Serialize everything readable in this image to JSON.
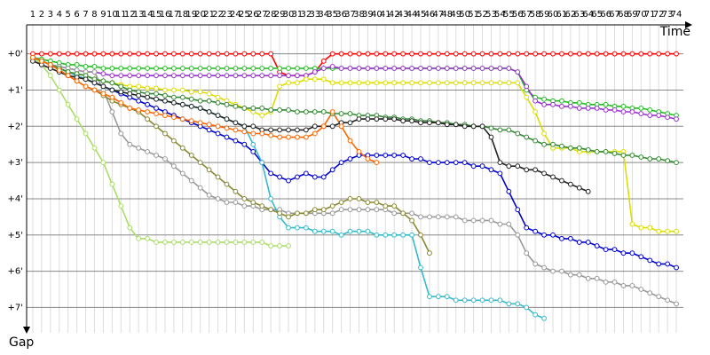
{
  "chart_data": {
    "type": "line",
    "x_label": "Time",
    "y_label": "Gap",
    "x": [
      1,
      2,
      3,
      4,
      5,
      6,
      7,
      8,
      9,
      10,
      11,
      12,
      13,
      14,
      15,
      16,
      17,
      18,
      19,
      20,
      21,
      22,
      23,
      24,
      25,
      26,
      27,
      28,
      29,
      30,
      31,
      32,
      33,
      34,
      35,
      36,
      37,
      38,
      39,
      40,
      41,
      42,
      43,
      44,
      45,
      46,
      47,
      48,
      49,
      50,
      51,
      52,
      53,
      54,
      55,
      56,
      57,
      58,
      59,
      60,
      61,
      62,
      63,
      64,
      65,
      66,
      67,
      68,
      69,
      70,
      71,
      72,
      73,
      74
    ],
    "xlim": [
      0.3,
      74.8
    ],
    "xticks": [
      1,
      2,
      3,
      4,
      5,
      6,
      7,
      8,
      9,
      10,
      11,
      12,
      13,
      14,
      15,
      16,
      17,
      18,
      19,
      20,
      21,
      22,
      23,
      24,
      25,
      26,
      27,
      28,
      29,
      30,
      31,
      32,
      33,
      34,
      35,
      36,
      37,
      38,
      39,
      40,
      41,
      42,
      43,
      44,
      45,
      46,
      47,
      48,
      49,
      50,
      51,
      52,
      53,
      54,
      55,
      56,
      57,
      58,
      59,
      60,
      61,
      62,
      63,
      64,
      65,
      66,
      67,
      68,
      69,
      70,
      71,
      72,
      73,
      74
    ],
    "ylim": [
      -0.8,
      7.7
    ],
    "y_inverted": true,
    "grid": true,
    "yticks": [
      {
        "value": 0,
        "label": "+0'"
      },
      {
        "value": 1,
        "label": "+1'"
      },
      {
        "value": 2,
        "label": "+2'"
      },
      {
        "value": 3,
        "label": "+3'"
      },
      {
        "value": 4,
        "label": "+4'"
      },
      {
        "value": 5,
        "label": "+5'"
      },
      {
        "value": 6,
        "label": "+6'"
      },
      {
        "value": 7,
        "label": "+7'"
      }
    ],
    "series": [
      {
        "color": "#ff0000",
        "values": [
          0,
          0,
          0,
          0,
          0,
          0,
          0,
          0,
          0,
          0,
          0,
          0,
          0,
          0,
          0,
          0,
          0,
          0,
          0,
          0,
          0,
          0,
          0,
          0,
          0,
          0,
          0,
          0,
          0.5,
          0.6,
          0.6,
          0.6,
          0.5,
          0.2,
          0,
          0,
          0,
          0,
          0,
          0,
          0,
          0,
          0,
          0,
          0,
          0,
          0,
          0,
          0,
          0,
          0,
          0,
          0,
          0,
          0,
          0,
          0,
          0,
          0,
          0,
          0,
          0,
          0,
          0,
          0,
          0,
          0,
          0,
          0,
          0,
          0,
          0,
          0,
          0
        ]
      },
      {
        "color": "#22bb22",
        "values": [
          0.1,
          0.15,
          0.2,
          0.25,
          0.3,
          0.3,
          0.35,
          0.35,
          0.4,
          0.4,
          0.4,
          0.4,
          0.4,
          0.4,
          0.4,
          0.4,
          0.4,
          0.4,
          0.4,
          0.4,
          0.4,
          0.4,
          0.4,
          0.4,
          0.4,
          0.4,
          0.4,
          0.4,
          0.4,
          0.4,
          0.4,
          0.4,
          0.4,
          0.4,
          0.4,
          0.4,
          0.4,
          0.4,
          0.4,
          0.4,
          0.4,
          0.4,
          0.4,
          0.4,
          0.4,
          0.4,
          0.4,
          0.4,
          0.4,
          0.4,
          0.4,
          0.4,
          0.4,
          0.4,
          0.4,
          0.5,
          1.0,
          1.2,
          1.25,
          1.3,
          1.3,
          1.35,
          1.35,
          1.4,
          1.4,
          1.4,
          1.45,
          1.45,
          1.5,
          1.5,
          1.55,
          1.6,
          1.65,
          1.7
        ]
      },
      {
        "color": "#9933cc",
        "values": [
          0.1,
          0.2,
          0.3,
          0.35,
          0.4,
          0.45,
          0.5,
          0.5,
          0.55,
          0.6,
          0.6,
          0.6,
          0.6,
          0.6,
          0.6,
          0.6,
          0.6,
          0.6,
          0.6,
          0.6,
          0.6,
          0.6,
          0.6,
          0.6,
          0.6,
          0.6,
          0.6,
          0.6,
          0.6,
          0.6,
          0.6,
          0.6,
          0.5,
          0.4,
          0.35,
          0.4,
          0.4,
          0.4,
          0.4,
          0.4,
          0.4,
          0.4,
          0.4,
          0.4,
          0.4,
          0.4,
          0.4,
          0.4,
          0.4,
          0.4,
          0.4,
          0.4,
          0.4,
          0.4,
          0.4,
          0.5,
          0.9,
          1.3,
          1.4,
          1.4,
          1.45,
          1.45,
          1.5,
          1.5,
          1.5,
          1.55,
          1.55,
          1.6,
          1.6,
          1.65,
          1.7,
          1.7,
          1.75,
          1.8
        ]
      },
      {
        "color": "#0000cc",
        "values": [
          0.1,
          0.2,
          0.3,
          0.4,
          0.5,
          0.6,
          0.7,
          0.8,
          0.9,
          1.0,
          1.1,
          1.2,
          1.3,
          1.4,
          1.5,
          1.6,
          1.7,
          1.8,
          1.9,
          2.0,
          2.1,
          2.2,
          2.3,
          2.4,
          2.5,
          2.7,
          3.0,
          3.3,
          3.4,
          3.5,
          3.4,
          3.3,
          3.4,
          3.4,
          3.2,
          3.0,
          2.9,
          2.8,
          2.8,
          2.8,
          2.8,
          2.8,
          2.8,
          2.9,
          2.9,
          3.0,
          3.0,
          3.0,
          3.0,
          3.0,
          3.1,
          3.1,
          3.2,
          3.3,
          3.8,
          4.3,
          4.8,
          4.9,
          5.0,
          5.0,
          5.1,
          5.1,
          5.2,
          5.2,
          5.3,
          5.4,
          5.4,
          5.5,
          5.5,
          5.6,
          5.7,
          5.8,
          5.8,
          5.9
        ]
      },
      {
        "color": "#999999",
        "values": [
          0.1,
          0.2,
          0.3,
          0.35,
          0.4,
          0.45,
          0.5,
          0.5,
          1.0,
          1.6,
          2.2,
          2.5,
          2.6,
          2.7,
          2.8,
          2.9,
          3.1,
          3.3,
          3.5,
          3.7,
          3.9,
          4.0,
          4.1,
          4.1,
          4.2,
          4.2,
          4.3,
          4.3,
          4.3,
          4.4,
          4.4,
          4.4,
          4.4,
          4.4,
          4.4,
          4.3,
          4.3,
          4.3,
          4.3,
          4.3,
          4.3,
          4.4,
          4.4,
          4.4,
          4.5,
          4.5,
          4.5,
          4.5,
          4.5,
          4.6,
          4.6,
          4.6,
          4.6,
          4.7,
          4.7,
          5.0,
          5.5,
          5.8,
          5.9,
          6.0,
          6.0,
          6.1,
          6.1,
          6.2,
          6.2,
          6.3,
          6.3,
          6.4,
          6.4,
          6.5,
          6.6,
          6.7,
          6.8,
          6.9
        ]
      },
      {
        "color": "#33bbcc",
        "values": [
          0.1,
          0.2,
          0.3,
          0.4,
          0.5,
          0.6,
          0.7,
          0.8,
          0.9,
          1.0,
          1.05,
          1.1,
          1.15,
          1.2,
          1.25,
          1.3,
          1.35,
          1.4,
          1.45,
          1.5,
          1.6,
          1.7,
          1.8,
          1.9,
          2.0,
          2.5,
          3.0,
          4.0,
          4.5,
          4.8,
          4.8,
          4.8,
          4.9,
          4.9,
          4.9,
          5.0,
          4.9,
          4.9,
          4.9,
          5.0,
          5.0,
          5.0,
          5.0,
          5.0,
          5.9,
          6.7,
          6.7,
          6.7,
          6.8,
          6.8,
          6.8,
          6.8,
          6.8,
          6.8,
          6.9,
          6.9,
          7.0,
          7.2,
          7.3,
          null,
          null,
          null,
          null,
          null,
          null,
          null,
          null,
          null,
          null,
          null,
          null,
          null,
          null,
          null
        ]
      },
      {
        "color": "#888833",
        "values": [
          0.1,
          0.2,
          0.3,
          0.45,
          0.6,
          0.75,
          0.9,
          1.0,
          1.15,
          1.3,
          1.4,
          1.5,
          1.6,
          1.8,
          2.0,
          2.2,
          2.4,
          2.6,
          2.8,
          3.0,
          3.2,
          3.4,
          3.6,
          3.8,
          4.0,
          4.1,
          4.2,
          4.3,
          4.4,
          4.5,
          4.4,
          4.4,
          4.3,
          4.3,
          4.2,
          4.1,
          4.0,
          4.0,
          4.1,
          4.1,
          4.2,
          4.2,
          4.4,
          4.6,
          5.0,
          5.5,
          null,
          null,
          null,
          null,
          null,
          null,
          null,
          null,
          null,
          null,
          null,
          null,
          null,
          null,
          null,
          null,
          null,
          null,
          null,
          null,
          null,
          null,
          null,
          null,
          null,
          null,
          null,
          null
        ]
      },
      {
        "color": "#aadd66",
        "values": [
          0.1,
          0.3,
          0.6,
          1.0,
          1.4,
          1.8,
          2.2,
          2.6,
          3.0,
          3.6,
          4.2,
          4.8,
          5.1,
          5.1,
          5.2,
          5.2,
          5.2,
          5.2,
          5.2,
          5.2,
          5.2,
          5.2,
          5.2,
          5.2,
          5.2,
          5.2,
          5.2,
          5.3,
          5.3,
          5.3,
          null,
          null,
          null,
          null,
          null,
          null,
          null,
          null,
          null,
          null,
          null,
          null,
          null,
          null,
          null,
          null,
          null,
          null,
          null,
          null,
          null,
          null,
          null,
          null,
          null,
          null,
          null,
          null,
          null,
          null,
          null,
          null,
          null,
          null,
          null,
          null,
          null,
          null,
          null,
          null,
          null,
          null,
          null,
          null
        ]
      },
      {
        "color": "#dddd00",
        "values": [
          0.1,
          0.2,
          0.3,
          0.4,
          0.5,
          0.55,
          0.6,
          0.7,
          0.75,
          0.8,
          0.85,
          0.9,
          0.9,
          0.95,
          0.95,
          1.0,
          1.0,
          1.0,
          1.05,
          1.05,
          1.1,
          1.2,
          1.3,
          1.4,
          1.5,
          1.6,
          1.7,
          1.6,
          0.9,
          0.8,
          0.8,
          0.7,
          0.7,
          0.7,
          0.8,
          0.8,
          0.8,
          0.8,
          0.8,
          0.8,
          0.8,
          0.8,
          0.8,
          0.8,
          0.8,
          0.8,
          0.8,
          0.8,
          0.8,
          0.8,
          0.8,
          0.8,
          0.8,
          0.8,
          0.8,
          0.8,
          1.2,
          1.6,
          2.2,
          2.6,
          2.6,
          2.6,
          2.7,
          2.7,
          2.7,
          2.7,
          2.7,
          2.7,
          4.7,
          4.8,
          4.8,
          4.9,
          4.9,
          4.9
        ]
      },
      {
        "color": "#338833",
        "values": [
          0.1,
          0.2,
          0.3,
          0.4,
          0.5,
          0.55,
          0.6,
          0.7,
          0.75,
          0.8,
          0.9,
          1.0,
          1.05,
          1.1,
          1.1,
          1.15,
          1.2,
          1.2,
          1.25,
          1.3,
          1.3,
          1.35,
          1.4,
          1.45,
          1.5,
          1.5,
          1.5,
          1.55,
          1.55,
          1.55,
          1.6,
          1.6,
          1.6,
          1.6,
          1.65,
          1.65,
          1.65,
          1.7,
          1.7,
          1.7,
          1.75,
          1.75,
          1.8,
          1.8,
          1.85,
          1.85,
          1.9,
          1.9,
          1.95,
          1.95,
          2.0,
          2.0,
          2.05,
          2.1,
          2.1,
          2.2,
          2.3,
          2.4,
          2.5,
          2.5,
          2.55,
          2.6,
          2.6,
          2.65,
          2.7,
          2.7,
          2.75,
          2.8,
          2.8,
          2.85,
          2.9,
          2.9,
          2.95,
          3.0
        ]
      },
      {
        "color": "#222222",
        "values": [
          0.2,
          0.3,
          0.4,
          0.5,
          0.6,
          0.65,
          0.7,
          0.8,
          0.9,
          1.0,
          1.05,
          1.1,
          1.15,
          1.2,
          1.25,
          1.3,
          1.35,
          1.4,
          1.45,
          1.5,
          1.6,
          1.7,
          1.8,
          1.9,
          2.0,
          2.0,
          2.1,
          2.1,
          2.1,
          2.1,
          2.1,
          2.1,
          2.0,
          2.0,
          2.0,
          1.9,
          1.9,
          1.8,
          1.8,
          1.8,
          1.8,
          1.8,
          1.85,
          1.85,
          1.9,
          1.9,
          1.9,
          1.95,
          1.95,
          2.0,
          2.0,
          2.0,
          2.3,
          3.0,
          3.1,
          3.1,
          3.2,
          3.2,
          3.3,
          3.4,
          3.5,
          3.6,
          3.7,
          3.8,
          null,
          null,
          null,
          null,
          null,
          null,
          null,
          null,
          null,
          null
        ]
      },
      {
        "color": "#ff6600",
        "values": [
          0.1,
          0.2,
          0.3,
          0.45,
          0.6,
          0.75,
          0.9,
          1.0,
          1.1,
          1.2,
          1.35,
          1.5,
          1.55,
          1.6,
          1.65,
          1.7,
          1.75,
          1.8,
          1.85,
          1.9,
          1.95,
          2.0,
          2.05,
          2.1,
          2.15,
          2.2,
          2.2,
          2.25,
          2.3,
          2.3,
          2.3,
          2.3,
          2.2,
          2.0,
          1.6,
          2.0,
          2.4,
          2.7,
          2.9,
          3.0,
          null,
          null,
          null,
          null,
          null,
          null,
          null,
          null,
          null,
          null,
          null,
          null,
          null,
          null,
          null,
          null,
          null,
          null,
          null,
          null,
          null,
          null,
          null,
          null,
          null,
          null,
          null,
          null,
          null,
          null,
          null,
          null,
          null,
          null
        ]
      }
    ]
  }
}
